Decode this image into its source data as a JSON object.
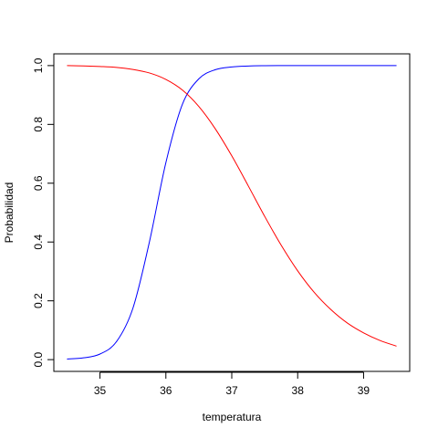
{
  "chart_data": {
    "type": "line",
    "title": "",
    "xlabel": "temperatura",
    "ylabel": "Probabilidad",
    "xlim": [
      34.3,
      39.7
    ],
    "ylim": [
      -0.04,
      1.04
    ],
    "xticks": [
      35,
      36,
      37,
      38,
      39
    ],
    "xtick_labels": [
      "35",
      "36",
      "37",
      "38",
      "39"
    ],
    "yticks": [
      0.0,
      0.2,
      0.4,
      0.6,
      0.8,
      1.0
    ],
    "ytick_labels": [
      "0.0",
      "0.2",
      "0.4",
      "0.6",
      "0.8",
      "1.0"
    ],
    "grid": false,
    "legend": "none",
    "x": [
      34.5,
      34.75,
      35.0,
      35.25,
      35.5,
      35.75,
      36.0,
      36.25,
      36.5,
      36.75,
      37.0,
      37.25,
      37.5,
      37.75,
      38.0,
      38.25,
      38.5,
      38.75,
      39.0,
      39.25,
      39.5
    ],
    "series": [
      {
        "color": "#0000ff",
        "values": [
          0.002,
          0.006,
          0.019,
          0.061,
          0.175,
          0.4,
          0.67,
          0.868,
          0.955,
          0.986,
          0.9955,
          0.9986,
          0.9996,
          0.9999,
          1.0,
          1.0,
          1.0,
          1.0,
          1.0,
          1.0,
          1.0
        ]
      },
      {
        "color": "#ff0000",
        "values": [
          1.0,
          0.999,
          0.997,
          0.994,
          0.987,
          0.975,
          0.953,
          0.917,
          0.861,
          0.785,
          0.693,
          0.591,
          0.487,
          0.389,
          0.302,
          0.229,
          0.171,
          0.125,
          0.091,
          0.065,
          0.046
        ]
      }
    ]
  }
}
